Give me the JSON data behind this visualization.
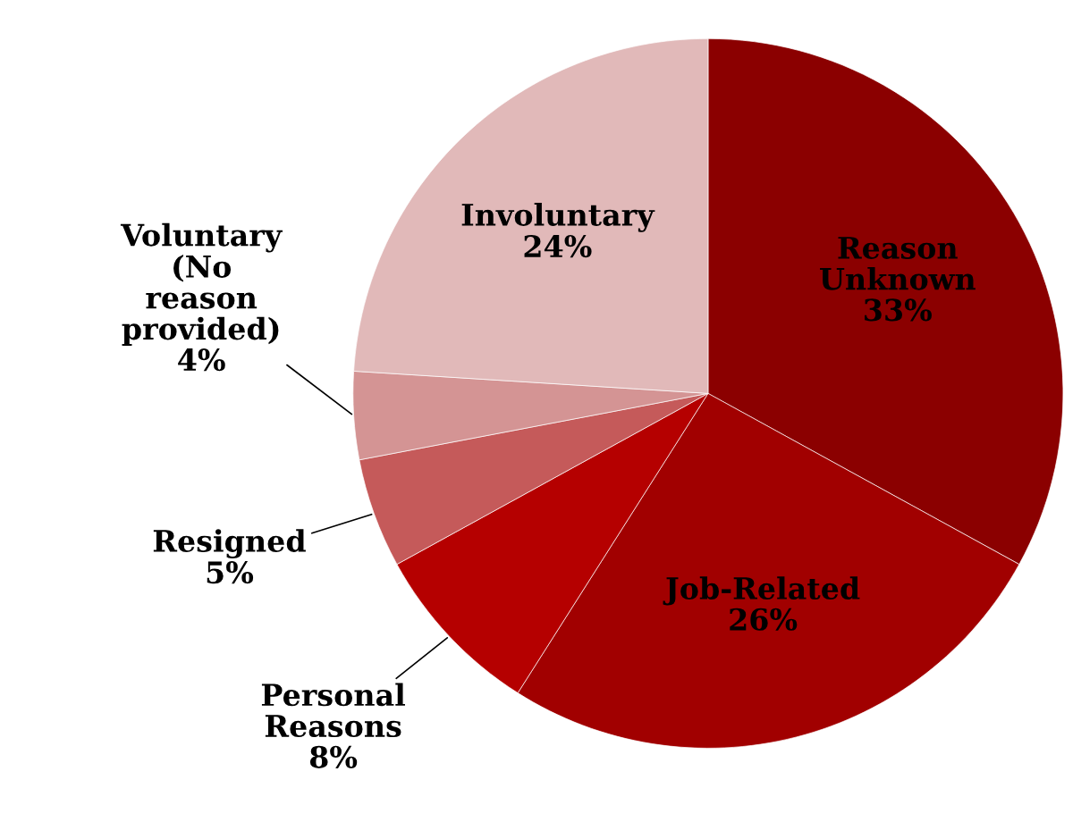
{
  "chart_data": {
    "type": "pie",
    "categories": [
      "Reason Unknown",
      "Job-Related",
      "Personal Reasons",
      "Resigned",
      "Voluntary (No reason provided)",
      "Involuntary"
    ],
    "values": [
      33,
      26,
      8,
      5,
      4,
      24
    ],
    "colors": [
      "#8b0000",
      "#a10000",
      "#b50000",
      "#c55a5a",
      "#d49494",
      "#e1b9b9"
    ],
    "value_labels": [
      "33%",
      "26%",
      "8%",
      "5%",
      "4%",
      "24%"
    ],
    "legend": false
  }
}
